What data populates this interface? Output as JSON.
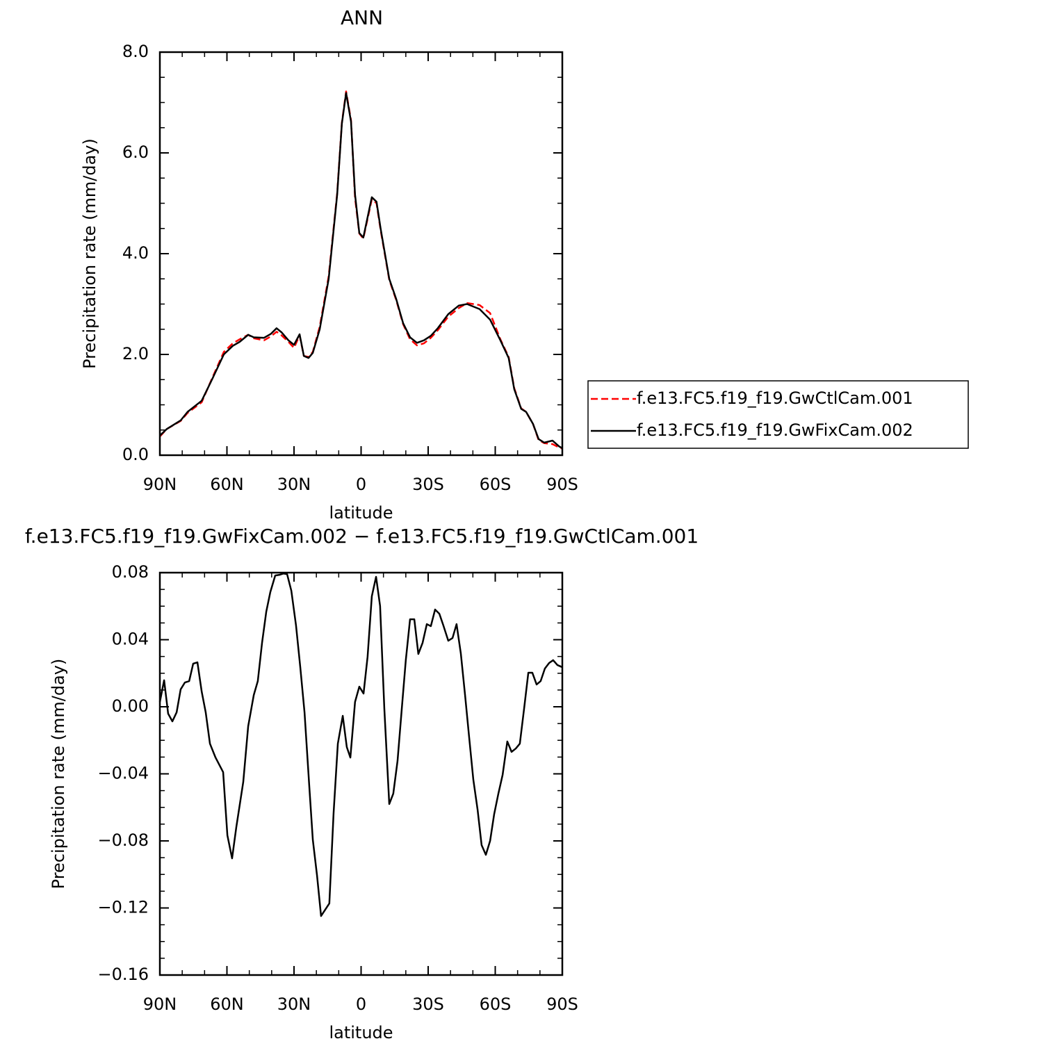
{
  "chart_data": [
    {
      "type": "line",
      "title": "ANN",
      "xlabel": "latitude",
      "ylabel": "Precipitation rate (mm/day)",
      "x": [
        90,
        86.9,
        80.7,
        77.6,
        71.3,
        66.7,
        61.4,
        57.4,
        54.3,
        50.5,
        48.0,
        43.4,
        40.3,
        37.8,
        35.6,
        32.5,
        30.0,
        27.5,
        25.6,
        23.5,
        21.6,
        18.5,
        14.5,
        10.7,
        8.6,
        6.7,
        4.5,
        2.7,
        0.8,
        -1.0,
        -4.8,
        -6.9,
        -8.8,
        -12.6,
        -15.7,
        -18.8,
        -21.9,
        -25.0,
        -28.1,
        -31.2,
        -34.3,
        -39.0,
        -43.7,
        -47.4,
        -53.0,
        -57.7,
        -62.3,
        -66.0,
        -68.5,
        -71.6,
        -73.8,
        -76.9,
        -79.4,
        -81.9,
        -85.6,
        -88.7,
        -90
      ],
      "series": [
        {
          "name": "f.e13.FC5.f19_f19.GwCtlCam.001",
          "color": "#ff0000",
          "dashed": true,
          "values": [
            0.37,
            0.52,
            0.68,
            0.84,
            1.05,
            1.52,
            2.05,
            2.22,
            2.3,
            2.39,
            2.32,
            2.28,
            2.36,
            2.45,
            2.38,
            2.25,
            2.13,
            2.38,
            1.97,
            1.95,
            2.05,
            2.55,
            3.55,
            5.2,
            6.6,
            7.22,
            6.65,
            5.1,
            4.4,
            4.3,
            5.08,
            5.0,
            4.45,
            3.48,
            3.08,
            2.6,
            2.3,
            2.18,
            2.22,
            2.33,
            2.48,
            2.75,
            2.92,
            3.02,
            2.98,
            2.82,
            2.3,
            1.95,
            1.33,
            0.93,
            0.86,
            0.62,
            0.3,
            0.24,
            0.22,
            0.15,
            0.13
          ]
        },
        {
          "name": "f.e13.FC5.f19_f19.GwFixCam.002",
          "color": "#000000",
          "dashed": false,
          "values": [
            0.39,
            0.52,
            0.69,
            0.86,
            1.08,
            1.5,
            2.0,
            2.17,
            2.25,
            2.39,
            2.34,
            2.33,
            2.41,
            2.52,
            2.44,
            2.28,
            2.19,
            2.4,
            1.97,
            1.93,
            2.03,
            2.5,
            3.5,
            5.17,
            6.58,
            7.19,
            6.62,
            5.17,
            4.41,
            4.32,
            5.12,
            5.03,
            4.48,
            3.5,
            3.1,
            2.62,
            2.34,
            2.23,
            2.28,
            2.37,
            2.52,
            2.8,
            2.97,
            3.0,
            2.9,
            2.69,
            2.28,
            1.93,
            1.31,
            0.92,
            0.86,
            0.62,
            0.32,
            0.25,
            0.29,
            0.17,
            0.14
          ]
        }
      ],
      "xlim": [
        90,
        -90
      ],
      "xticks": [
        {
          "value": 90,
          "label": "90N"
        },
        {
          "value": 60,
          "label": "60N"
        },
        {
          "value": 30,
          "label": "30N"
        },
        0,
        {
          "value": -30,
          "label": "30S"
        },
        {
          "value": -60,
          "label": "60S"
        },
        {
          "value": -90,
          "label": "90S"
        }
      ],
      "ylim": [
        0,
        8
      ],
      "yticks": [
        {
          "value": 0,
          "label": "0.0"
        },
        {
          "value": 2,
          "label": "2.0"
        },
        {
          "value": 4,
          "label": "4.0"
        },
        {
          "value": 6,
          "label": "6.0"
        },
        {
          "value": 8,
          "label": "8.0"
        }
      ],
      "legend": "right"
    },
    {
      "type": "line",
      "title": "f.e13.FC5.f19_f19.GwFixCam.002 − f.e13.FC5.f19_f19.GwCtlCam.001",
      "xlabel": "latitude",
      "ylabel": "Precipitation rate (mm/day)",
      "x": [
        90,
        88.1,
        86.3,
        84.4,
        82.5,
        80.7,
        78.8,
        76.9,
        75.1,
        73.2,
        71.3,
        69.5,
        67.6,
        65.1,
        61.7,
        59.8,
        57.7,
        55.8,
        52.7,
        50.5,
        48.0,
        46.2,
        44.3,
        42.4,
        40.6,
        38.4,
        36.5,
        34.7,
        33.1,
        31.2,
        29.1,
        27.2,
        25.3,
        23.2,
        21.6,
        19.7,
        17.9,
        14.2,
        12.3,
        10.4,
        8.2,
        6.4,
        4.8,
        2.7,
        0.8,
        -1.1,
        -2.9,
        -4.8,
        -6.7,
        -8.5,
        -10.4,
        -12.6,
        -14.4,
        -16.3,
        -18.2,
        -20.0,
        -21.9,
        -23.8,
        -25.6,
        -27.5,
        -29.4,
        -31.2,
        -33.1,
        -35.0,
        -36.8,
        -39.0,
        -40.9,
        -42.7,
        -44.6,
        -46.5,
        -48.3,
        -50.2,
        -52.1,
        -53.9,
        -55.8,
        -57.7,
        -59.5,
        -61.4,
        -63.3,
        -65.4,
        -67.3,
        -69.2,
        -71.0,
        -72.9,
        -74.8,
        -76.6,
        -78.5,
        -80.3,
        -82.2,
        -84.1,
        -85.9,
        -87.8,
        -90
      ],
      "series": [
        {
          "color": "#000000",
          "dashed": false,
          "values": [
            0.0029,
            0.0158,
            -0.0041,
            -0.0087,
            -0.0033,
            0.0104,
            0.0145,
            0.0153,
            0.0257,
            0.0265,
            0.0091,
            -0.0033,
            -0.022,
            -0.0303,
            -0.039,
            -0.0767,
            -0.0904,
            -0.0717,
            -0.0448,
            -0.0116,
            0.007,
            0.0153,
            0.0381,
            0.0568,
            0.0684,
            0.0783,
            0.0787,
            0.0795,
            0.0791,
            0.0692,
            0.0485,
            0.0236,
            -0.0033,
            -0.0468,
            -0.0792,
            -0.1007,
            -0.1248,
            -0.1173,
            -0.0634,
            -0.022,
            -0.0054,
            -0.024,
            -0.0303,
            0.0029,
            0.012,
            0.0079,
            0.0298,
            0.0659,
            0.0775,
            0.0601,
            -0.0012,
            -0.058,
            -0.0518,
            -0.0323,
            -0.0012,
            0.0278,
            0.0522,
            0.0522,
            0.0315,
            0.0381,
            0.0493,
            0.0481,
            0.058,
            0.0555,
            0.0485,
            0.0394,
            0.041,
            0.0493,
            0.0319,
            0.007,
            -0.0178,
            -0.0435,
            -0.0613,
            -0.0825,
            -0.0883,
            -0.08,
            -0.0642,
            -0.0518,
            -0.0406,
            -0.0207,
            -0.0269,
            -0.0249,
            -0.022,
            -0.0012,
            0.0203,
            0.0203,
            0.0133,
            0.0153,
            0.0228,
            0.0261,
            0.0278,
            0.0249,
            0.0236
          ]
        }
      ],
      "xlim": [
        90,
        -90
      ],
      "xticks": [
        {
          "value": 90,
          "label": "90N"
        },
        {
          "value": 60,
          "label": "60N"
        },
        {
          "value": 30,
          "label": "30N"
        },
        0,
        {
          "value": -30,
          "label": "30S"
        },
        {
          "value": -60,
          "label": "60S"
        },
        {
          "value": -90,
          "label": "90S"
        }
      ],
      "ylim": [
        -0.16,
        0.08
      ],
      "yticks": [
        {
          "value": -0.16,
          "label": "−0.16"
        },
        {
          "value": -0.12,
          "label": "−0.12"
        },
        {
          "value": -0.08,
          "label": "−0.08"
        },
        {
          "value": -0.04,
          "label": "−0.04"
        },
        {
          "value": 0,
          "label": "0.00"
        },
        0.04,
        0.08
      ]
    }
  ]
}
